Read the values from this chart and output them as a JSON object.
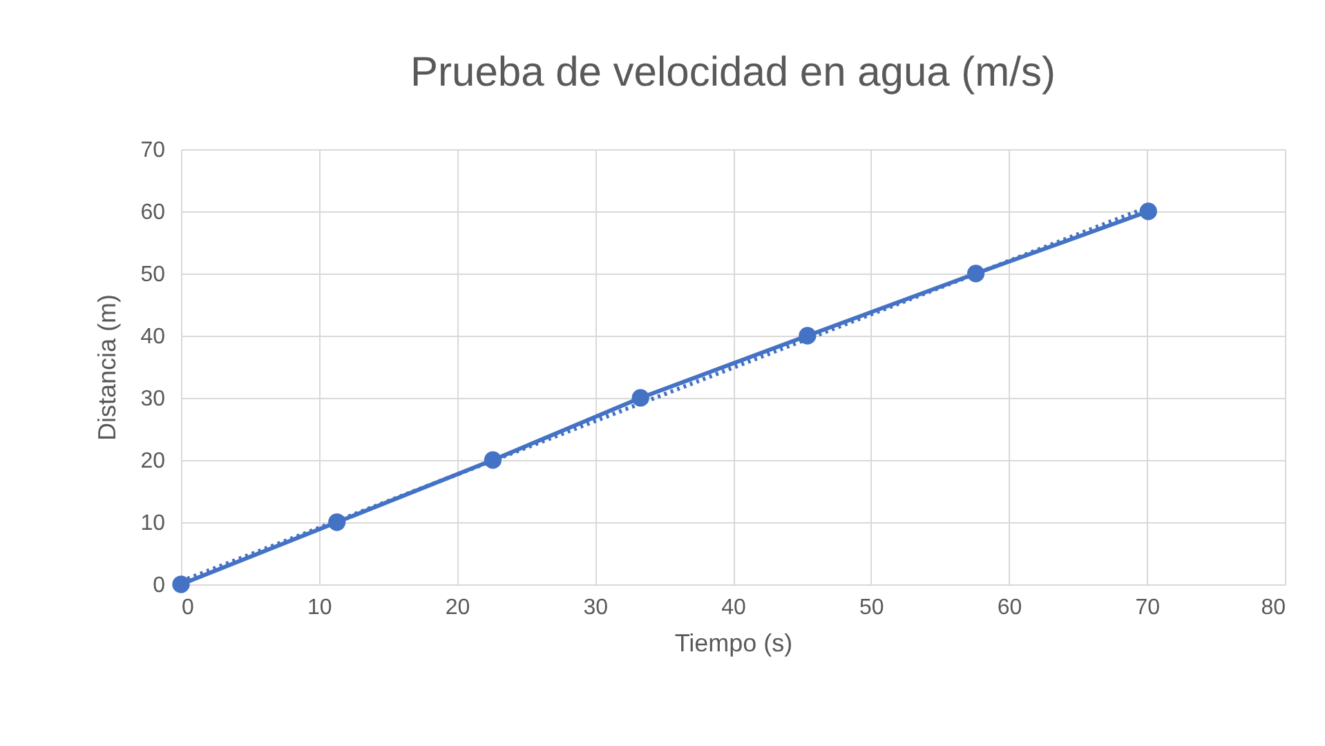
{
  "chart_data": {
    "type": "line",
    "title": "Prueba de velocidad en agua (m/s)",
    "xlabel": "Tiempo (s)",
    "ylabel": "Distancia (m)",
    "xlim": [
      0,
      80
    ],
    "xticks": [
      0,
      10,
      20,
      30,
      40,
      50,
      60,
      70,
      80
    ],
    "ylim": [
      0,
      70
    ],
    "yticks": [
      0,
      10,
      20,
      30,
      40,
      50,
      60,
      70
    ],
    "grid": true,
    "series": [
      {
        "color": "#4472c4",
        "x": [
          0,
          11.3,
          22.6,
          33.3,
          45.4,
          57.6,
          70.1
        ],
        "values": [
          0,
          10,
          20,
          30,
          40,
          50,
          60
        ],
        "marker": "circle",
        "line_style": "solid"
      },
      {
        "type": "line",
        "color": "#4472c4",
        "x": [
          0,
          70.1
        ],
        "values": [
          0.5,
          60.7
        ],
        "marker": "none",
        "line_style": "dotted"
      }
    ]
  }
}
